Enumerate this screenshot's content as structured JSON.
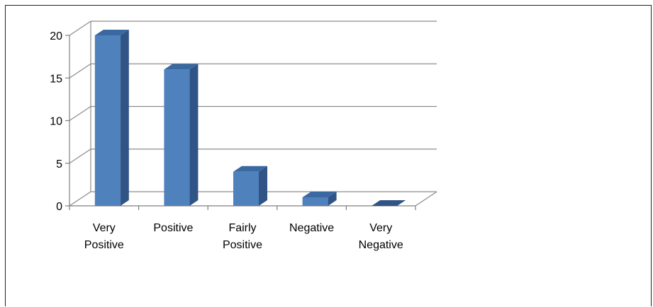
{
  "chart_data": {
    "type": "bar",
    "style": "3d-column",
    "categories": [
      [
        "Very",
        "Positive"
      ],
      [
        "Positive"
      ],
      [
        "Fairly",
        "Positive"
      ],
      [
        "Negative"
      ],
      [
        "Very",
        "Negative"
      ]
    ],
    "values": [
      20,
      16,
      4,
      1,
      0
    ],
    "ylim": [
      0,
      20
    ],
    "yticks": [
      0,
      5,
      10,
      15,
      20
    ],
    "grid": true,
    "legend": "none",
    "colors": {
      "bar_front": "#4f81bd",
      "bar_side": "#2f5485",
      "bar_top": "#3a68a0",
      "grid": "#8c8c8c",
      "axis": "#7f7f7f"
    }
  }
}
